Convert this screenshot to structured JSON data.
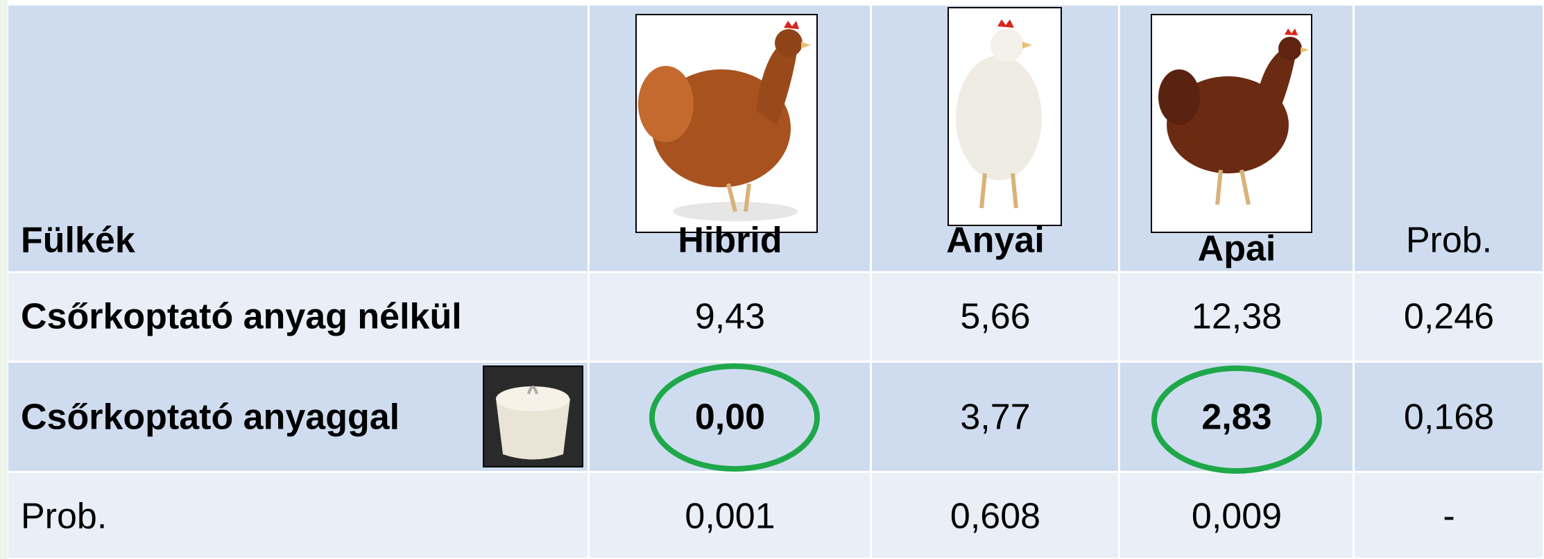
{
  "table": {
    "header": [
      "Fülkék",
      "Hibrid",
      "Anyai",
      "Apai",
      "Prob."
    ],
    "rows": [
      [
        "Csőrkoptató anyag nélkül",
        "9,43",
        "5,66",
        "12,38",
        "0,246"
      ],
      [
        "Csőrkoptató anyaggal",
        "0,00",
        "3,77",
        "2,83",
        "0,168"
      ],
      [
        "Prob.",
        "0,001",
        "0,608",
        "0,009",
        "-"
      ]
    ]
  }
}
